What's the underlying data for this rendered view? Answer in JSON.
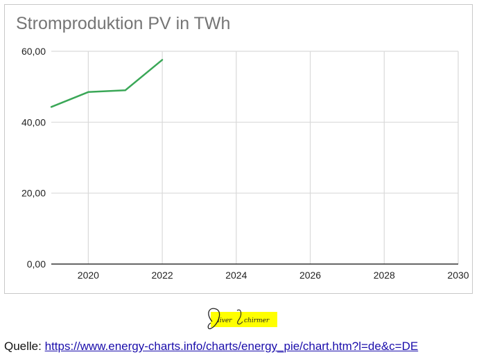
{
  "chart_data": {
    "type": "line",
    "title": "Stromproduktion PV in TWh",
    "xlabel": "",
    "ylabel": "",
    "xlim": [
      2019,
      2030
    ],
    "ylim": [
      0,
      60
    ],
    "x_ticks": [
      "2020",
      "2022",
      "2024",
      "2026",
      "2028",
      "2030"
    ],
    "y_ticks": [
      "0,00",
      "20,00",
      "40,00",
      "60,00"
    ],
    "grid": true,
    "legend": "none",
    "series": [
      {
        "color": "#3aa757",
        "x": [
          2019,
          2020,
          2021,
          2022
        ],
        "values": [
          44.3,
          48.5,
          49.0,
          57.6
        ]
      }
    ]
  },
  "signature": {
    "text": "Oliver Schirmer",
    "highlight_color": "#ffff00"
  },
  "source": {
    "label": "Quelle:",
    "url_text": "https://www.energy-charts.info/charts/energy_pie/chart.htm?l=de&c=DE"
  }
}
